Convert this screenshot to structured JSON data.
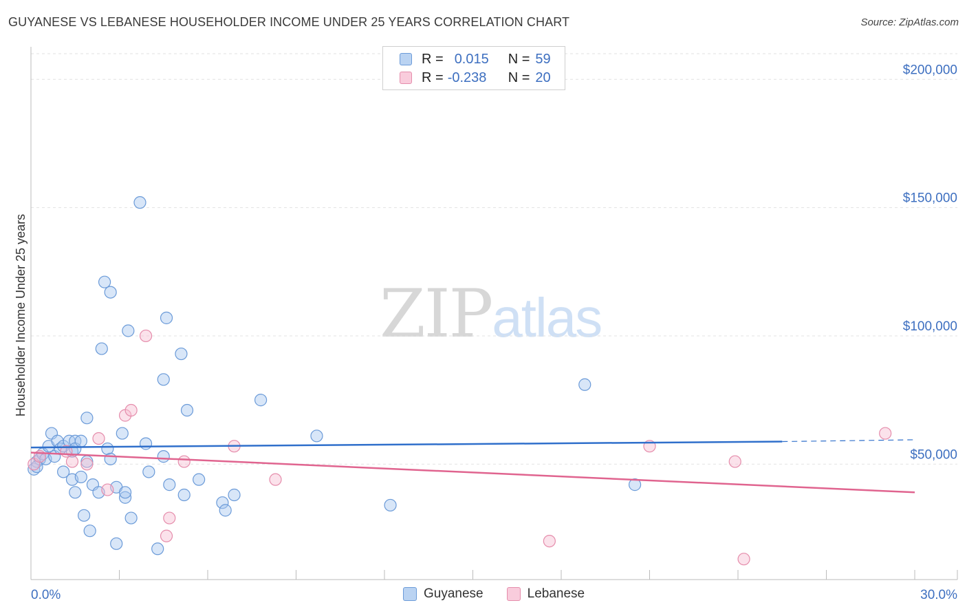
{
  "title": "GUYANESE VS LEBANESE HOUSEHOLDER INCOME UNDER 25 YEARS CORRELATION CHART",
  "source": "Source: ZipAtlas.com",
  "watermark": {
    "zip": "ZIP",
    "atlas": "atlas"
  },
  "legend": {
    "rows": [
      {
        "r_label": "R =",
        "r_value": "0.015",
        "n_label": "N =",
        "n_value": "59"
      },
      {
        "r_label": "R =",
        "r_value": "-0.238",
        "n_label": "N =",
        "n_value": "20"
      }
    ]
  },
  "bottom_legend": [
    "Guyanese",
    "Lebanese"
  ],
  "colors": {
    "guyanese_fill": "#a9c8ef",
    "guyanese_stroke": "#6a9ad8",
    "guyanese_line": "#2f6fcb",
    "lebanese_fill": "#f6bfd2",
    "lebanese_stroke": "#e58cab",
    "lebanese_line": "#e0648f",
    "tick": "#3d6fc0",
    "grid": "#e2e2e2"
  },
  "chart_data": {
    "type": "scatter",
    "title": "GUYANESE VS LEBANESE HOUSEHOLDER INCOME UNDER 25 YEARS CORRELATION CHART",
    "xlabel": "",
    "ylabel": "Householder Income Under 25 years",
    "xlim": [
      0,
      30
    ],
    "ylim": [
      5000,
      210000
    ],
    "x_tick_labels": [
      "0.0%",
      "30.0%"
    ],
    "y_ticks": [
      50000,
      100000,
      150000,
      200000
    ],
    "y_tick_labels": [
      "$50,000",
      "$100,000",
      "$150,000",
      "$200,000"
    ],
    "grid": true,
    "legend_position": "top-center",
    "series": [
      {
        "name": "Guyanese",
        "r": 0.015,
        "n": 59,
        "trend": {
          "x": [
            0,
            25.5
          ],
          "y": [
            56500,
            58800
          ],
          "dashed_to_x": 30,
          "dashed_y": 59500
        },
        "points": [
          [
            0.1,
            48000
          ],
          [
            0.2,
            51000
          ],
          [
            0.3,
            52000
          ],
          [
            0.4,
            54000
          ],
          [
            0.5,
            52000
          ],
          [
            0.6,
            57000
          ],
          [
            0.7,
            62000
          ],
          [
            0.8,
            53000
          ],
          [
            0.9,
            59000
          ],
          [
            1.0,
            56000
          ],
          [
            1.1,
            57000
          ],
          [
            1.1,
            47000
          ],
          [
            1.3,
            59000
          ],
          [
            1.4,
            55000
          ],
          [
            1.4,
            44000
          ],
          [
            1.5,
            59000
          ],
          [
            1.5,
            56000
          ],
          [
            1.5,
            39000
          ],
          [
            1.7,
            45000
          ],
          [
            1.7,
            59000
          ],
          [
            1.8,
            30000
          ],
          [
            1.9,
            51000
          ],
          [
            1.9,
            68000
          ],
          [
            2.0,
            24000
          ],
          [
            2.1,
            42000
          ],
          [
            2.3,
            39000
          ],
          [
            2.4,
            95000
          ],
          [
            2.5,
            121000
          ],
          [
            2.6,
            56000
          ],
          [
            2.7,
            52000
          ],
          [
            2.7,
            117000
          ],
          [
            2.9,
            19000
          ],
          [
            2.9,
            41000
          ],
          [
            3.1,
            62000
          ],
          [
            3.2,
            37000
          ],
          [
            3.2,
            39000
          ],
          [
            3.3,
            102000
          ],
          [
            3.4,
            29000
          ],
          [
            3.7,
            152000
          ],
          [
            3.9,
            58000
          ],
          [
            4.0,
            47000
          ],
          [
            4.3,
            17000
          ],
          [
            4.5,
            53000
          ],
          [
            4.5,
            83000
          ],
          [
            4.6,
            107000
          ],
          [
            4.7,
            42000
          ],
          [
            5.1,
            93000
          ],
          [
            5.2,
            38000
          ],
          [
            5.3,
            71000
          ],
          [
            5.7,
            44000
          ],
          [
            6.5,
            35000
          ],
          [
            6.6,
            32000
          ],
          [
            6.9,
            38000
          ],
          [
            7.8,
            75000
          ],
          [
            9.7,
            61000
          ],
          [
            12.2,
            34000
          ],
          [
            18.8,
            81000
          ],
          [
            20.5,
            42000
          ],
          [
            0.2,
            49000
          ]
        ]
      },
      {
        "name": "Lebanese",
        "r": -0.238,
        "n": 20,
        "trend": {
          "x": [
            0,
            30
          ],
          "y": [
            54500,
            39000
          ]
        },
        "points": [
          [
            0.1,
            50000
          ],
          [
            0.3,
            53000
          ],
          [
            1.2,
            55000
          ],
          [
            1.4,
            51000
          ],
          [
            1.9,
            50000
          ],
          [
            2.3,
            60000
          ],
          [
            2.6,
            40000
          ],
          [
            3.2,
            69000
          ],
          [
            3.4,
            71000
          ],
          [
            3.9,
            100000
          ],
          [
            4.6,
            22000
          ],
          [
            4.7,
            29000
          ],
          [
            5.2,
            51000
          ],
          [
            6.9,
            57000
          ],
          [
            8.3,
            44000
          ],
          [
            17.6,
            20000
          ],
          [
            21.0,
            57000
          ],
          [
            23.9,
            51000
          ],
          [
            24.2,
            13000
          ],
          [
            29.0,
            62000
          ]
        ]
      }
    ]
  }
}
